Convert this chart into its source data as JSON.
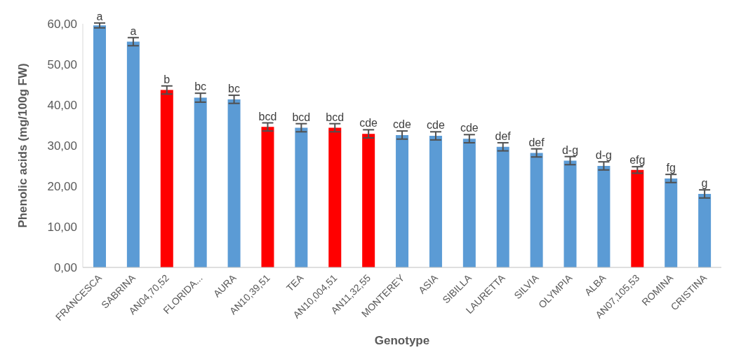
{
  "chart_data": {
    "type": "bar",
    "xlabel": "Genotype",
    "ylabel": "Phenolic acids (mg/100g FW)",
    "categories": [
      "FRANCESCA",
      "SABRINA",
      "AN04,70,52",
      "FLORIDA...",
      "AURA",
      "AN10,39,51",
      "TEA",
      "AN10,004,51",
      "AN11,32,55",
      "MONTEREY",
      "ASIA",
      "SIBILLA",
      "LAURETTA",
      "SILVIA",
      "OLYMPIA",
      "ALBA",
      "AN07,105,53",
      "ROMINA",
      "CRISTINA"
    ],
    "values": [
      59.6,
      55.6,
      43.7,
      41.8,
      41.4,
      34.6,
      34.4,
      34.4,
      32.9,
      32.6,
      32.4,
      31.7,
      29.7,
      28.2,
      26.3,
      25.0,
      24.0,
      21.9,
      18.1
    ],
    "errors": [
      0.6,
      1.0,
      1.0,
      1.1,
      1.0,
      1.0,
      1.0,
      1.0,
      1.0,
      1.0,
      1.0,
      1.0,
      1.0,
      1.0,
      1.0,
      1.0,
      0.8,
      1.0,
      1.0
    ],
    "colors": [
      "#5b9bd5",
      "#5b9bd5",
      "#ff0000",
      "#5b9bd5",
      "#5b9bd5",
      "#ff0000",
      "#5b9bd5",
      "#ff0000",
      "#ff0000",
      "#5b9bd5",
      "#5b9bd5",
      "#5b9bd5",
      "#5b9bd5",
      "#5b9bd5",
      "#5b9bd5",
      "#5b9bd5",
      "#ff0000",
      "#5b9bd5",
      "#5b9bd5"
    ],
    "ylim": [
      0,
      60
    ],
    "yticks": [
      {
        "value": 0,
        "label": "0,00"
      },
      {
        "value": 10,
        "label": "10,00"
      },
      {
        "value": 20,
        "label": "20,00"
      },
      {
        "value": 30,
        "label": "30,00"
      },
      {
        "value": 40,
        "label": "40,00"
      },
      {
        "value": 50,
        "label": "50,00"
      },
      {
        "value": 60,
        "label": "60,00"
      }
    ],
    "grid": false,
    "legend": false,
    "annotations": [
      {
        "text": "a",
        "x": "FRANCESCA",
        "y": 60.2
      },
      {
        "text": "a",
        "x": "SABRINA",
        "y": 56.6
      },
      {
        "text": "b",
        "x": "AN04,70,52",
        "y": 44.7
      },
      {
        "text": "bc",
        "x": "FLORIDA...",
        "y": 42.9
      },
      {
        "text": "bc",
        "x": "AURA",
        "y": 42.4
      },
      {
        "text": "bcd",
        "x": "AN10,39,51",
        "y": 35.6
      },
      {
        "text": "bcd",
        "x": "TEA",
        "y": 35.4
      },
      {
        "text": "bcd",
        "x": "AN10,004,51",
        "y": 35.4
      },
      {
        "text": "cde",
        "x": "AN11,32,55",
        "y": 33.9
      },
      {
        "text": "cde",
        "x": "MONTEREY",
        "y": 33.6
      },
      {
        "text": "cde",
        "x": "ASIA",
        "y": 33.4
      },
      {
        "text": "cde",
        "x": "SIBILLA",
        "y": 32.7
      },
      {
        "text": "def",
        "x": "LAURETTA",
        "y": 30.7
      },
      {
        "text": "def",
        "x": "SILVIA",
        "y": 29.2
      },
      {
        "text": "d-g",
        "x": "OLYMPIA",
        "y": 27.3
      },
      {
        "text": "d-g",
        "x": "ALBA",
        "y": 26.0
      },
      {
        "text": "efg",
        "x": "AN07,105,53",
        "y": 24.8
      },
      {
        "text": "fg",
        "x": "ROMINA",
        "y": 22.9
      },
      {
        "text": "g",
        "x": "CRISTINA",
        "y": 19.1
      }
    ]
  }
}
